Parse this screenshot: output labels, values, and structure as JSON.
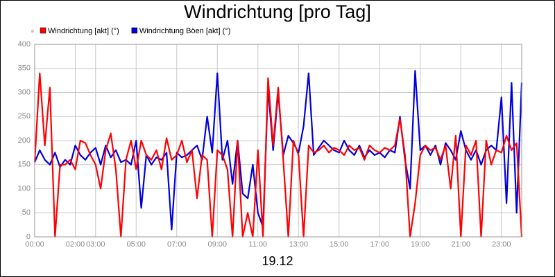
{
  "chart_data": {
    "type": "line",
    "title": "Windrichtung [pro Tag]",
    "xlabel": "19.12",
    "x": [
      0,
      0.25,
      0.5,
      0.75,
      1,
      1.25,
      1.5,
      1.75,
      2,
      2.25,
      2.5,
      2.75,
      3,
      3.25,
      3.5,
      3.75,
      4,
      4.25,
      4.5,
      4.75,
      5,
      5.25,
      5.5,
      5.75,
      6,
      6.25,
      6.5,
      6.75,
      7,
      7.25,
      7.5,
      7.75,
      8,
      8.25,
      8.5,
      8.75,
      9,
      9.25,
      9.5,
      9.75,
      10,
      10.25,
      10.5,
      10.75,
      11,
      11.25,
      11.5,
      11.75,
      12,
      12.25,
      12.5,
      12.75,
      13,
      13.25,
      13.5,
      13.75,
      14,
      14.25,
      14.5,
      14.75,
      15,
      15.25,
      15.5,
      15.75,
      16,
      16.25,
      16.5,
      16.75,
      17,
      17.25,
      17.5,
      17.75,
      18,
      18.25,
      18.5,
      18.75,
      19,
      19.25,
      19.5,
      19.75,
      20,
      20.25,
      20.5,
      20.75,
      21,
      21.25,
      21.5,
      21.75,
      22,
      22.25,
      22.5,
      22.75,
      23,
      23.25,
      23.5,
      23.75,
      24
    ],
    "series": [
      {
        "name": "Windrichtung [akt] (°)",
        "color": "#ff0000",
        "values": [
          155,
          340,
          190,
          310,
          0,
          150,
          150,
          160,
          140,
          200,
          195,
          170,
          150,
          100,
          180,
          215,
          140,
          0,
          160,
          200,
          140,
          200,
          170,
          160,
          180,
          140,
          205,
          160,
          170,
          200,
          155,
          180,
          80,
          170,
          160,
          0,
          180,
          170,
          140,
          0,
          200,
          0,
          50,
          0,
          180,
          0,
          330,
          190,
          310,
          160,
          0,
          200,
          170,
          0,
          190,
          175,
          180,
          190,
          175,
          185,
          180,
          170,
          190,
          180,
          185,
          160,
          190,
          180,
          175,
          185,
          180,
          190,
          245,
          170,
          0,
          70,
          170,
          190,
          180,
          185,
          160,
          190,
          100,
          210,
          0,
          190,
          170,
          200,
          0,
          200,
          150,
          180,
          175,
          210,
          180,
          195,
          0
        ]
      },
      {
        "name": "Windrichtung Böen [akt] (°)",
        "color": "#0000dd",
        "values": [
          155,
          180,
          160,
          150,
          175,
          145,
          160,
          150,
          190,
          170,
          160,
          175,
          185,
          150,
          190,
          165,
          180,
          155,
          160,
          150,
          200,
          60,
          170,
          150,
          165,
          160,
          175,
          15,
          175,
          165,
          170,
          180,
          190,
          160,
          250,
          175,
          340,
          160,
          200,
          110,
          200,
          90,
          80,
          150,
          50,
          20,
          310,
          180,
          300,
          170,
          210,
          195,
          175,
          230,
          340,
          170,
          185,
          200,
          190,
          180,
          175,
          200,
          180,
          170,
          190,
          165,
          180,
          170,
          175,
          165,
          180,
          175,
          250,
          160,
          100,
          345,
          180,
          190,
          170,
          190,
          150,
          195,
          180,
          160,
          220,
          180,
          160,
          180,
          150,
          180,
          190,
          180,
          290,
          70,
          320,
          50,
          320
        ]
      }
    ],
    "xlim": [
      0,
      24
    ],
    "xticks": [
      {
        "value": 0,
        "label": "00:00"
      },
      {
        "value": 2,
        "label": "02:00"
      },
      {
        "value": 3,
        "label": "03:00"
      },
      {
        "value": 5,
        "label": "05:00"
      },
      {
        "value": 7,
        "label": "07:00"
      },
      {
        "value": 9,
        "label": "09:00"
      },
      {
        "value": 11,
        "label": "11:00"
      },
      {
        "value": 13,
        "label": "13:00"
      },
      {
        "value": 15,
        "label": "15:00"
      },
      {
        "value": 17,
        "label": "17:00"
      },
      {
        "value": 19,
        "label": "19:00"
      },
      {
        "value": 21,
        "label": "21:00"
      },
      {
        "value": 23,
        "label": "23:00"
      }
    ],
    "ylim": [
      0,
      400
    ],
    "yticks": [
      0,
      50,
      100,
      150,
      200,
      250,
      300,
      350,
      400
    ],
    "grid": true
  }
}
